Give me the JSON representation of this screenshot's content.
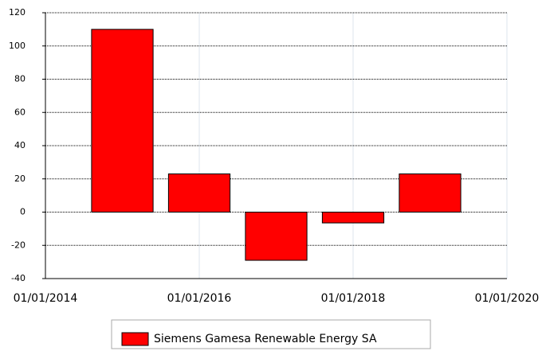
{
  "chart_data": {
    "type": "bar",
    "x": [
      2015,
      2016,
      2017,
      2018,
      2019
    ],
    "series": [
      {
        "name": "Siemens Gamesa Renewable Energy SA",
        "color": "#ff0000",
        "values": [
          110,
          23,
          -29,
          -6.5,
          23
        ]
      }
    ],
    "xlim": [
      2014,
      2020
    ],
    "xticks": [
      {
        "value": 2014,
        "label": "01/01/2014"
      },
      {
        "value": 2016,
        "label": "01/01/2016"
      },
      {
        "value": 2018,
        "label": "01/01/2018"
      },
      {
        "value": 2020,
        "label": "01/01/2020"
      }
    ],
    "ylim": [
      -40,
      120
    ],
    "yticks": [
      -40,
      -20,
      0,
      20,
      40,
      60,
      80,
      100,
      120
    ],
    "grid": true,
    "legend": "bottom"
  }
}
